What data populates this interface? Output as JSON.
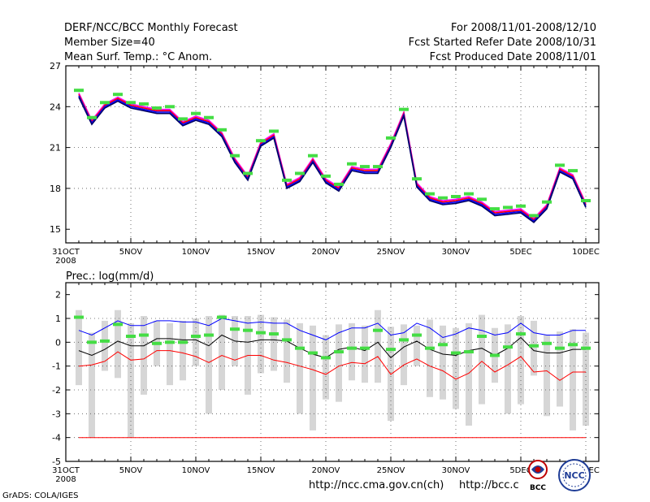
{
  "header": {
    "title": "DERF/NCC/BCC Monthly Forecast",
    "member_size": "Member Size=40",
    "variable": "Mean Surf. Temp.: °C Anom.",
    "period": "For 2008/11/01-2008/12/10",
    "started": "Fcst Started Refer Date 2008/10/31",
    "produced": "Fcst Produced Date 2008/11/01"
  },
  "footer": {
    "url1": "http://ncc.cma.gov.cn(ch)",
    "url2": "http://bcc.c",
    "grads": "GrADS: COLA/IGES",
    "logo_bcc": "BCC",
    "logo_ncc": "NCC"
  },
  "colors": {
    "blue": "#0000ff",
    "red": "#ff0000",
    "green": "#44dd44",
    "gray": "#d6d6d6",
    "magenta": "#ff00ff",
    "navy": "#000066"
  },
  "chart_data": [
    {
      "type": "line",
      "title": "Mean Surf. Temp.: °C Anom.",
      "x_ticks": [
        "31OCT",
        "5NOV",
        "10NOV",
        "15NOV",
        "20NOV",
        "25NOV",
        "30NOV",
        "5DEC",
        "10DEC"
      ],
      "x_tick_days": [
        0,
        5,
        10,
        15,
        20,
        25,
        30,
        35,
        40
      ],
      "x_sublabel": "2008",
      "ylim": [
        14,
        27
      ],
      "y_ticks": [
        15,
        18,
        21,
        24,
        27
      ],
      "days": [
        1,
        2,
        3,
        4,
        5,
        6,
        7,
        8,
        9,
        10,
        11,
        12,
        13,
        14,
        15,
        16,
        17,
        18,
        19,
        20,
        21,
        22,
        23,
        24,
        25,
        26,
        27,
        28,
        29,
        30,
        31,
        32,
        33,
        34,
        35,
        36,
        37,
        38,
        39,
        40
      ],
      "series": [
        {
          "name": "member-1",
          "color": "#ff00ff",
          "values": [
            25.0,
            23.0,
            24.2,
            24.7,
            24.2,
            24.0,
            23.8,
            23.8,
            22.9,
            23.3,
            23.0,
            22.1,
            20.2,
            18.9,
            21.4,
            22.0,
            18.3,
            18.8,
            20.2,
            18.7,
            18.1,
            19.6,
            19.4,
            19.4,
            21.3,
            23.6,
            18.4,
            17.4,
            17.1,
            17.2,
            17.4,
            17.0,
            16.3,
            16.4,
            16.5,
            15.8,
            16.8,
            19.5,
            19.0,
            16.9
          ]
        },
        {
          "name": "member-2",
          "color": "#ff0000",
          "values": [
            24.9,
            22.9,
            24.1,
            24.6,
            24.1,
            23.9,
            23.7,
            23.7,
            22.8,
            23.2,
            22.9,
            22.0,
            20.1,
            18.8,
            21.3,
            21.9,
            18.2,
            18.7,
            20.1,
            18.6,
            18.0,
            19.5,
            19.3,
            19.3,
            21.2,
            23.5,
            18.3,
            17.3,
            17.0,
            17.1,
            17.3,
            16.9,
            16.2,
            16.3,
            16.4,
            15.7,
            16.7,
            19.4,
            18.9,
            16.8
          ]
        },
        {
          "name": "member-3",
          "color": "#0000ff",
          "values": [
            24.8,
            22.8,
            24.0,
            24.5,
            24.0,
            23.8,
            23.6,
            23.6,
            22.7,
            23.1,
            22.8,
            21.9,
            20.0,
            18.7,
            21.2,
            21.8,
            18.1,
            18.6,
            20.0,
            18.5,
            17.9,
            19.4,
            19.2,
            19.2,
            21.1,
            23.4,
            18.2,
            17.2,
            16.9,
            17.0,
            17.2,
            16.8,
            16.1,
            16.2,
            16.3,
            15.6,
            16.6,
            19.3,
            18.8,
            16.7
          ]
        },
        {
          "name": "member-4",
          "color": "#000066",
          "values": [
            24.7,
            22.7,
            23.9,
            24.4,
            23.9,
            23.7,
            23.5,
            23.5,
            22.6,
            23.0,
            22.7,
            21.8,
            19.9,
            18.6,
            21.1,
            21.7,
            18.0,
            18.5,
            19.9,
            18.4,
            17.8,
            19.3,
            19.1,
            19.1,
            21.0,
            23.3,
            18.1,
            17.1,
            16.8,
            16.9,
            17.1,
            16.7,
            16.0,
            16.1,
            16.2,
            15.5,
            16.5,
            19.2,
            18.7,
            16.6
          ]
        }
      ],
      "markers": {
        "name": "observed",
        "color": "#44dd44",
        "values": [
          25.2,
          23.2,
          24.3,
          24.9,
          24.3,
          24.2,
          23.9,
          24.0,
          23.1,
          23.5,
          23.2,
          22.3,
          20.4,
          19.1,
          21.5,
          22.2,
          18.6,
          19.1,
          20.4,
          18.9,
          18.3,
          19.8,
          19.6,
          19.6,
          21.7,
          23.8,
          18.7,
          17.6,
          17.3,
          17.4,
          17.6,
          17.2,
          16.5,
          16.6,
          16.7,
          16.0,
          17.0,
          19.7,
          19.3,
          17.1
        ]
      }
    },
    {
      "type": "line",
      "title": "Prec.: log(mm/d)",
      "x_ticks": [
        "31OCT",
        "5NOV",
        "10NOV",
        "15NOV",
        "20NOV",
        "25NOV",
        "30NOV",
        "5DEC",
        "10DEC"
      ],
      "x_tick_days": [
        0,
        5,
        10,
        15,
        20,
        25,
        30,
        35,
        40
      ],
      "x_sublabel": "2008",
      "ylim": [
        -5,
        2.5
      ],
      "y_ticks": [
        -5,
        -4,
        -3,
        -2,
        -1,
        0,
        1,
        2
      ],
      "days": [
        1,
        2,
        3,
        4,
        5,
        6,
        7,
        8,
        9,
        10,
        11,
        12,
        13,
        14,
        15,
        16,
        17,
        18,
        19,
        20,
        21,
        22,
        23,
        24,
        25,
        26,
        27,
        28,
        29,
        30,
        31,
        32,
        33,
        34,
        35,
        36,
        37,
        38,
        39,
        40
      ],
      "bars": {
        "name": "ensemble-range",
        "color": "#d6d6d6",
        "high": [
          1.35,
          0.4,
          0.9,
          1.35,
          0.8,
          1.1,
          0.9,
          0.8,
          0.9,
          1.0,
          1.1,
          1.15,
          1.1,
          1.1,
          1.15,
          1.05,
          0.95,
          0.8,
          0.7,
          0.3,
          0.75,
          0.8,
          0.7,
          1.35,
          0.65,
          0.75,
          0.7,
          0.95,
          0.7,
          0.6,
          0.8,
          1.15,
          0.6,
          0.75,
          1.1,
          0.9,
          0.3,
          0.45,
          0.55,
          0.4
        ],
        "low": [
          -1.8,
          -4.0,
          -1.2,
          -1.5,
          -4.0,
          -2.2,
          -1.0,
          -1.8,
          -1.6,
          -1.0,
          -3.0,
          -2.0,
          -1.0,
          -2.2,
          -1.3,
          -1.2,
          -1.7,
          -3.0,
          -3.7,
          -2.4,
          -2.5,
          -1.6,
          -1.7,
          -1.7,
          -3.3,
          -1.8,
          -1.0,
          -2.3,
          -2.4,
          -2.8,
          -3.5,
          -2.6,
          -1.7,
          -3.0,
          -2.6,
          -1.4,
          -3.1,
          -2.7,
          -3.7,
          -3.5
        ]
      },
      "series": [
        {
          "name": "upper",
          "color": "#0000ff",
          "values": [
            0.5,
            0.3,
            0.6,
            0.9,
            0.7,
            0.7,
            0.9,
            0.9,
            0.85,
            0.85,
            0.7,
            1.0,
            0.9,
            0.8,
            0.85,
            0.8,
            0.8,
            0.5,
            0.3,
            0.1,
            0.4,
            0.6,
            0.6,
            0.8,
            0.3,
            0.4,
            0.8,
            0.6,
            0.2,
            0.35,
            0.6,
            0.5,
            0.3,
            0.4,
            0.8,
            0.4,
            0.3,
            0.3,
            0.5,
            0.5
          ]
        },
        {
          "name": "median",
          "color": "#000000",
          "values": [
            -0.35,
            -0.55,
            -0.3,
            0.05,
            -0.15,
            -0.15,
            0.15,
            0.15,
            0.1,
            0.1,
            -0.15,
            0.3,
            0.05,
            0.0,
            0.1,
            0.1,
            0.05,
            -0.25,
            -0.5,
            -0.65,
            -0.3,
            -0.2,
            -0.35,
            0.0,
            -0.65,
            -0.2,
            0.05,
            -0.3,
            -0.5,
            -0.55,
            -0.35,
            -0.25,
            -0.55,
            -0.25,
            0.2,
            -0.35,
            -0.45,
            -0.45,
            -0.3,
            -0.3
          ]
        },
        {
          "name": "lower",
          "color": "#ff0000",
          "values": [
            -1.0,
            -0.95,
            -0.8,
            -0.4,
            -0.75,
            -0.7,
            -0.35,
            -0.35,
            -0.45,
            -0.6,
            -0.85,
            -0.55,
            -0.75,
            -0.55,
            -0.55,
            -0.75,
            -0.85,
            -1.0,
            -1.15,
            -1.35,
            -1.0,
            -0.85,
            -0.9,
            -0.6,
            -1.35,
            -0.95,
            -0.7,
            -1.0,
            -1.2,
            -1.55,
            -1.3,
            -0.8,
            -1.25,
            -0.95,
            -0.6,
            -1.25,
            -1.2,
            -1.6,
            -1.25,
            -1.25
          ]
        },
        {
          "name": "floor",
          "color": "#ff0000",
          "values": [
            -4,
            -4,
            -4,
            -4,
            -4,
            -4,
            -4,
            -4,
            -4,
            -4,
            -4,
            -4,
            -4,
            -4,
            -4,
            -4,
            -4,
            -4,
            -4,
            -4,
            -4,
            -4,
            -4,
            -4,
            -4,
            -4,
            -4,
            -4,
            -4,
            -4,
            -4,
            -4,
            -4,
            -4,
            -4,
            -4,
            -4,
            -4,
            -4,
            -4
          ]
        }
      ],
      "markers": {
        "name": "observed",
        "color": "#44dd44",
        "values": [
          1.05,
          0.0,
          0.05,
          0.75,
          0.25,
          0.3,
          -0.05,
          0.0,
          0.0,
          0.25,
          0.3,
          1.05,
          0.55,
          0.5,
          0.4,
          0.35,
          0.1,
          -0.25,
          -0.45,
          -0.65,
          -0.4,
          -0.25,
          -0.25,
          0.5,
          -0.3,
          0.1,
          0.3,
          -0.25,
          -0.1,
          -0.45,
          -0.4,
          0.25,
          -0.55,
          -0.2,
          0.35,
          -0.15,
          -0.05,
          -0.25,
          -0.1,
          -0.25
        ]
      }
    }
  ]
}
